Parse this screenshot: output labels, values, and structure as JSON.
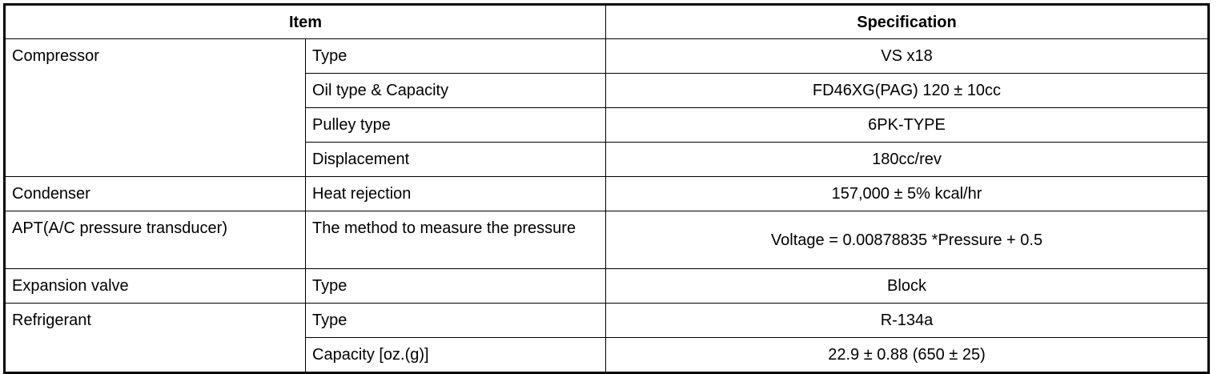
{
  "header": {
    "item": "Item",
    "specification": "Specification"
  },
  "groups": [
    {
      "name": "Compressor",
      "rows": [
        {
          "item": "Type",
          "spec": "VS x18"
        },
        {
          "item": "Oil type & Capacity",
          "spec": "FD46XG(PAG) 120 ± 10cc"
        },
        {
          "item": "Pulley type",
          "spec": "6PK-TYPE"
        },
        {
          "item": "Displacement",
          "spec": "180cc/rev"
        }
      ]
    },
    {
      "name": "Condenser",
      "rows": [
        {
          "item": "Heat rejection",
          "spec": "157,000 ± 5% kcal/hr"
        }
      ]
    },
    {
      "name": "APT(A/C pressure transducer)",
      "rows": [
        {
          "item": "The method to measure the pressure",
          "spec": "Voltage = 0.00878835 *Pressure + 0.5"
        }
      ]
    },
    {
      "name": "Expansion valve",
      "rows": [
        {
          "item": "Type",
          "spec": "Block"
        }
      ]
    },
    {
      "name": "Refrigerant",
      "rows": [
        {
          "item": "Type",
          "spec": "R-134a"
        },
        {
          "item": "Capacity [oz.(g)]",
          "spec": "22.9 ± 0.88 (650 ± 25)"
        }
      ]
    }
  ]
}
